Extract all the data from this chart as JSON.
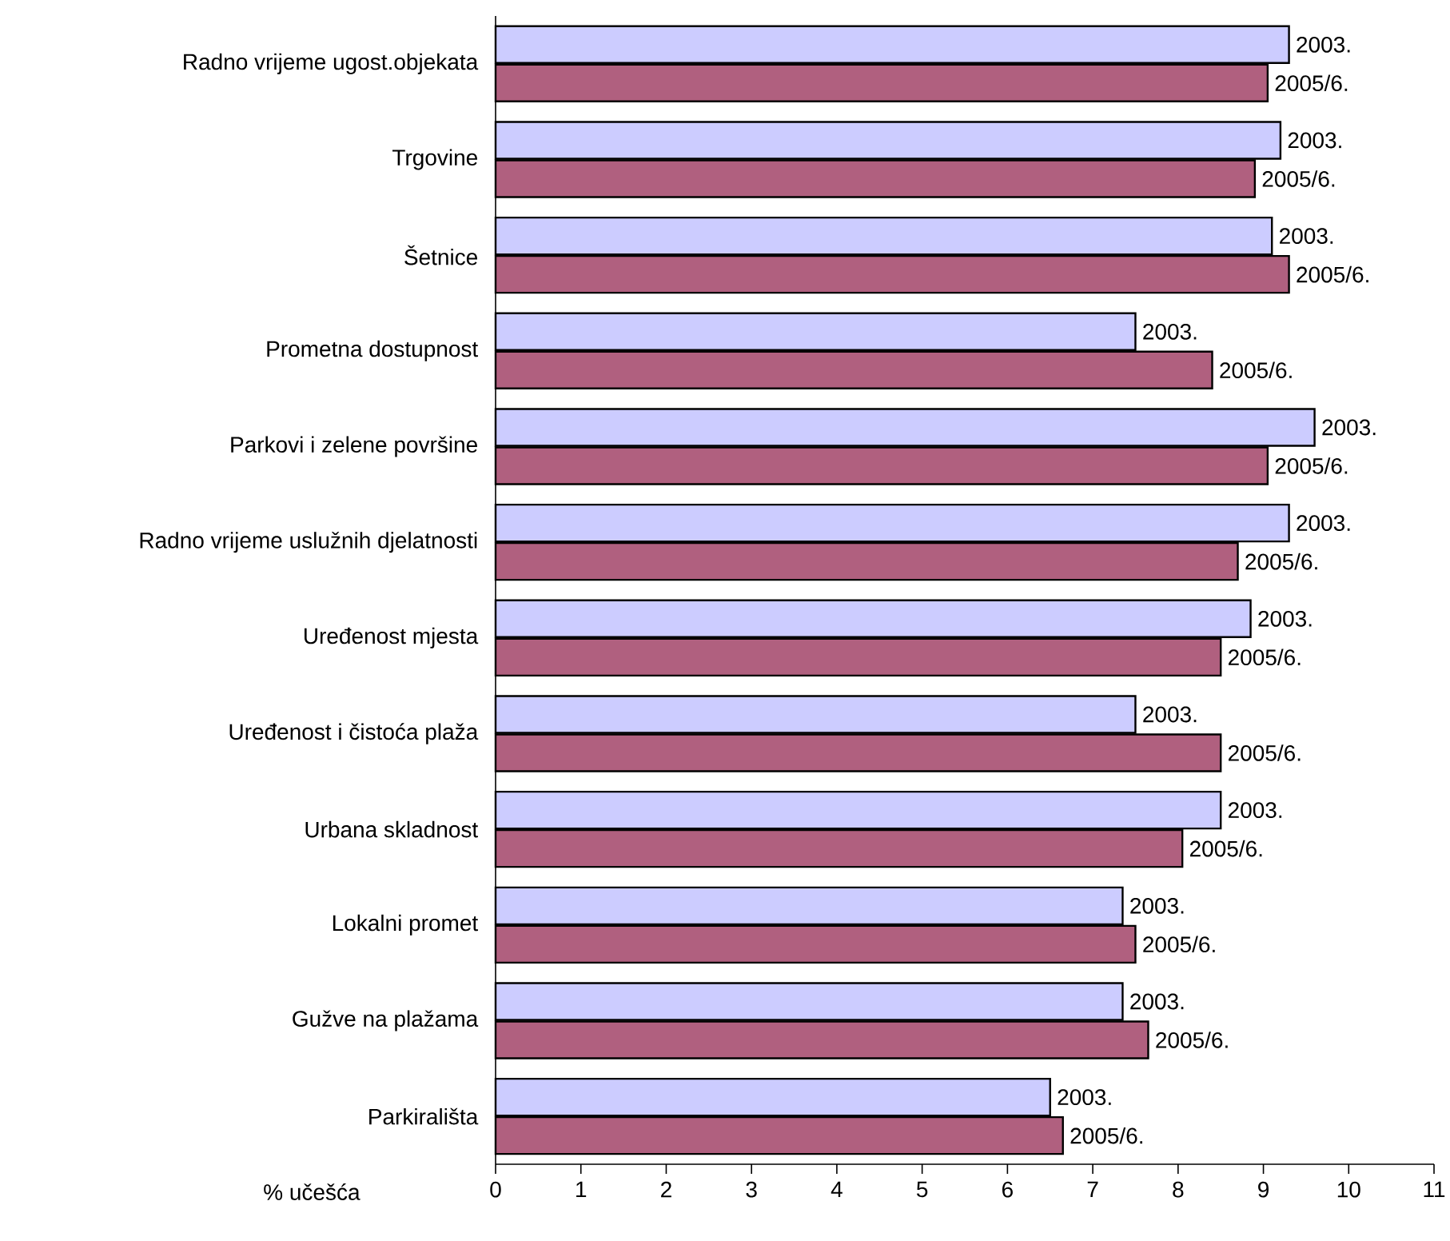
{
  "chart_data": {
    "type": "bar",
    "orientation": "horizontal",
    "xlabel": "% učešća",
    "categories": [
      "Radno vrijeme ugost.objekata",
      "Trgovine",
      "Šetnice",
      "Prometna dostupnost",
      "Parkovi i zelene površine",
      "Radno vrijeme uslužnih djelatnosti",
      "Uređenost mjesta",
      "Uređenost i čistoća plaža",
      "Urbana skladnost",
      "Lokalni promet",
      "Gužve na plažama",
      "Parkirališta"
    ],
    "series": [
      {
        "name": "2003.",
        "color": "#ccccff",
        "values": [
          9.3,
          9.2,
          9.1,
          7.5,
          9.6,
          9.3,
          8.85,
          7.5,
          8.5,
          7.35,
          7.35,
          6.5
        ]
      },
      {
        "name": "2005/6.",
        "color": "#b0607f",
        "values": [
          9.05,
          8.9,
          9.3,
          8.4,
          9.05,
          8.7,
          8.5,
          8.5,
          8.05,
          7.5,
          7.65,
          6.65
        ]
      }
    ],
    "xlim": [
      0,
      11
    ],
    "xticks": [
      0,
      1,
      2,
      3,
      4,
      5,
      6,
      7,
      8,
      9,
      10,
      11
    ]
  }
}
